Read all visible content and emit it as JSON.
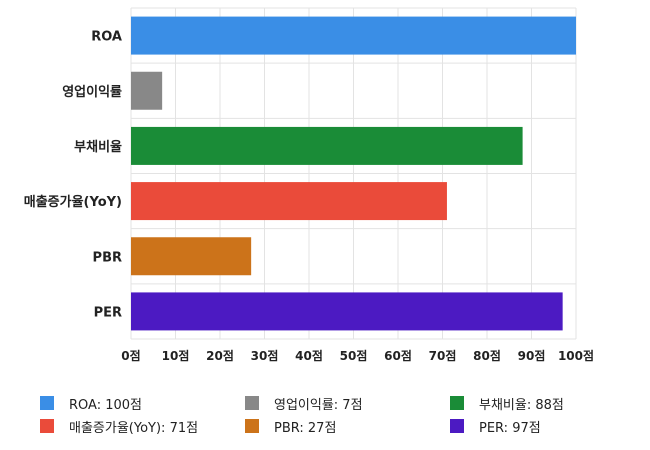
{
  "chart_data": {
    "type": "bar",
    "orientation": "horizontal",
    "categories": [
      "ROA",
      "영업이익률",
      "부채비율",
      "매출증가율(YoY)",
      "PBR",
      "PER"
    ],
    "values": [
      100,
      7,
      88,
      71,
      27,
      97
    ],
    "colors": [
      "#3a8ee6",
      "#888888",
      "#1a8c37",
      "#ea4b3a",
      "#cc731a",
      "#4c1ac2"
    ],
    "xlim": [
      0,
      100
    ],
    "ticks": [
      0,
      10,
      20,
      30,
      40,
      50,
      60,
      70,
      80,
      90,
      100
    ],
    "tick_labels": [
      "0점",
      "10점",
      "20점",
      "30점",
      "40점",
      "50점",
      "60점",
      "70점",
      "80점",
      "90점",
      "100점"
    ],
    "grid": true,
    "legend_position": "bottom",
    "title": "",
    "xlabel": "",
    "ylabel": ""
  },
  "legend": [
    {
      "label": "ROA: 100점",
      "color": "#3a8ee6"
    },
    {
      "label": "영업이익률: 7점",
      "color": "#888888"
    },
    {
      "label": "부채비율: 88점",
      "color": "#1a8c37"
    },
    {
      "label": "매출증가율(YoY): 71점",
      "color": "#ea4b3a"
    },
    {
      "label": "PBR: 27점",
      "color": "#cc731a"
    },
    {
      "label": "PER: 97점",
      "color": "#4c1ac2"
    }
  ]
}
